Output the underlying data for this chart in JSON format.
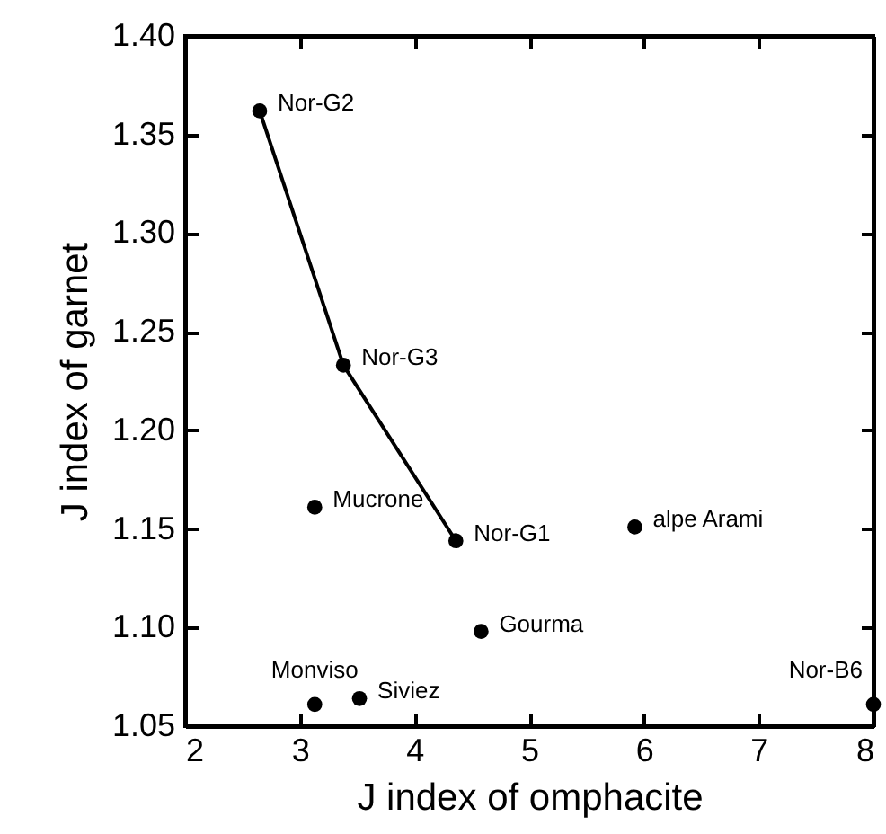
{
  "chart_data": {
    "type": "scatter",
    "xlabel": "J index of omphacite",
    "ylabel": "J index of garnet",
    "xlim": [
      2,
      8
    ],
    "xticks": [
      2,
      3,
      4,
      5,
      6,
      7,
      8
    ],
    "ylim": [
      1.05,
      1.4
    ],
    "yticks": [
      {
        "value": 1.05,
        "label": "1.05"
      },
      {
        "value": 1.1,
        "label": "1.10"
      },
      {
        "value": 1.15,
        "label": "1.15"
      },
      {
        "value": 1.2,
        "label": "1.20"
      },
      {
        "value": 1.25,
        "label": "1.25"
      },
      {
        "value": 1.3,
        "label": "1.30"
      },
      {
        "value": 1.35,
        "label": "1.35"
      },
      {
        "value": 1.4,
        "label": "1.40"
      }
    ],
    "grid": false,
    "marker": "circle",
    "series": [
      {
        "type": "line",
        "color": "#000000",
        "line_style": "solid",
        "x": [
          2.65,
          3.38,
          4.36
        ],
        "values": [
          1.362,
          1.233,
          1.144
        ]
      },
      {
        "type": "scatter",
        "color": "#000000",
        "x": [
          3.13,
          5.92,
          4.58,
          3.13,
          3.52,
          8.0
        ],
        "values": [
          1.161,
          1.151,
          1.098,
          1.061,
          1.064,
          1.061
        ]
      }
    ],
    "annotations": [
      {
        "text": "Nor-G2",
        "x": 2.65,
        "y": 1.362
      },
      {
        "text": "Nor-G3",
        "x": 3.38,
        "y": 1.233
      },
      {
        "text": "Nor-G1",
        "x": 4.36,
        "y": 1.144
      },
      {
        "text": "Mucrone",
        "x": 3.13,
        "y": 1.161
      },
      {
        "text": "alpe Arami",
        "x": 5.92,
        "y": 1.151
      },
      {
        "text": "Gourma",
        "x": 4.58,
        "y": 1.098
      },
      {
        "text": "Monviso",
        "x": 3.13,
        "y": 1.061
      },
      {
        "text": "Siviez",
        "x": 3.52,
        "y": 1.064
      },
      {
        "text": "Nor-B6",
        "x": 8.0,
        "y": 1.061
      }
    ]
  }
}
